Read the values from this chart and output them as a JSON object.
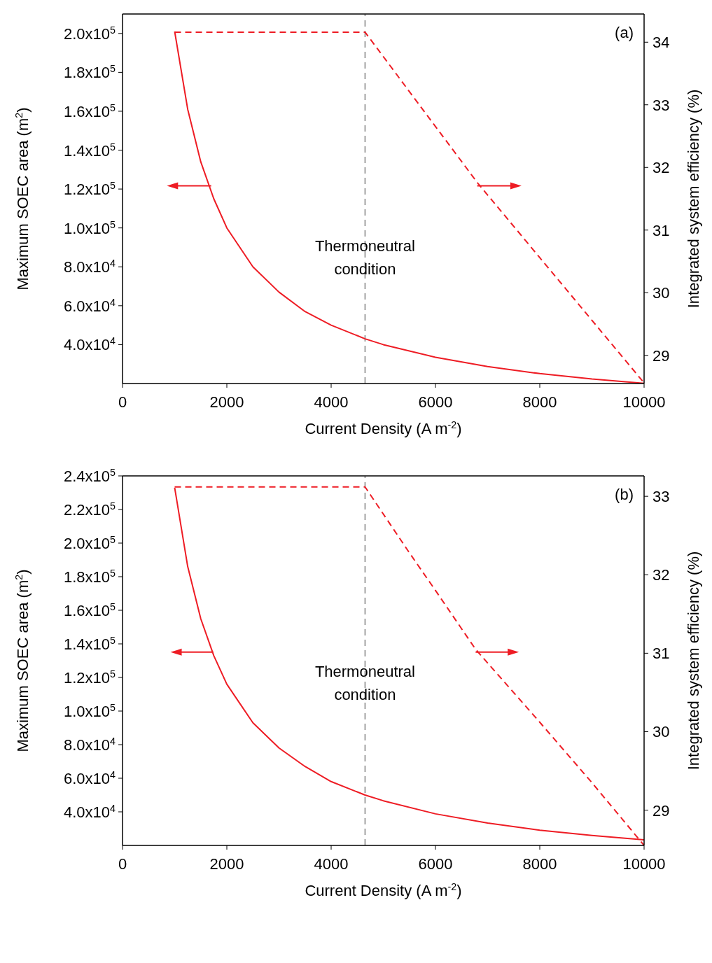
{
  "chart_data": [
    {
      "type": "line",
      "annotations": [
        "(a)",
        {
          "text": "Thermoneutral condition",
          "x": 4650,
          "y": 85000
        }
      ],
      "xlabel": "Current Density (A m$^{-2}$)",
      "ylabel": "Maximum SOEC area (m$^{2}$)",
      "y2label": "Integrated system efficiency (%)",
      "xlim": [
        0,
        10000
      ],
      "xticks": [
        0,
        2000,
        4000,
        6000,
        8000,
        10000
      ],
      "ylim": [
        20000,
        210000
      ],
      "yticks": [
        {
          "value": 40000,
          "label": "4.0x10$^{4}$"
        },
        {
          "value": 60000,
          "label": "6.0x10$^{4}$"
        },
        {
          "value": 80000,
          "label": "8.0x10$^{4}$"
        },
        {
          "value": 100000,
          "label": "1.0x10$^{5}$"
        },
        {
          "value": 120000,
          "label": "1.2x10$^{5}$"
        },
        {
          "value": 140000,
          "label": "1.4x10$^{5}$"
        },
        {
          "value": 160000,
          "label": "1.6x10$^{5}$"
        },
        {
          "value": 180000,
          "label": "1.8x10$^{5}$"
        },
        {
          "value": 200000,
          "label": "2.0x10$^{5}$"
        }
      ],
      "y2lim": [
        28.55,
        34.45
      ],
      "y2ticks": [
        29,
        30,
        31,
        32,
        33,
        34
      ],
      "ref_lines": [
        {
          "axis": "x",
          "value": 4650,
          "color": "#808080",
          "line_style": "dashed"
        }
      ],
      "series": [
        {
          "color": "#ee1c24",
          "x": [
            1000,
            1250,
            1500,
            1750,
            2000,
            2500,
            3000,
            3500,
            4000,
            4650,
            5000,
            6000,
            7000,
            8000,
            9000,
            10000
          ],
          "values": [
            201000,
            161000,
            134000,
            115000,
            100000,
            80000,
            67000,
            57000,
            50000,
            43000,
            40000,
            33500,
            28700,
            25100,
            22300,
            20100
          ]
        },
        {
          "color": "#ee1c24",
          "axis": "y2",
          "line_style": "dashed",
          "x": [
            1000,
            4650,
            6810,
            8000,
            10000
          ],
          "values": [
            34.16,
            34.16,
            31.75,
            30.56,
            28.56
          ]
        }
      ]
    },
    {
      "type": "line",
      "annotations": [
        "(b)",
        {
          "text": "Thermoneutral condition",
          "x": 4650,
          "y": 117000
        }
      ],
      "xlabel": "Current Density (A m$^{-2}$)",
      "ylabel": "Maximum SOEC area (m$^{2}$)",
      "y2label": "Integrated system efficiency (%)",
      "xlim": [
        0,
        10000
      ],
      "xticks": [
        0,
        2000,
        4000,
        6000,
        8000,
        10000
      ],
      "ylim": [
        20000,
        240000
      ],
      "yticks": [
        {
          "value": 40000,
          "label": "4.0x10$^{4}$"
        },
        {
          "value": 60000,
          "label": "6.0x10$^{4}$"
        },
        {
          "value": 80000,
          "label": "8.0x10$^{4}$"
        },
        {
          "value": 100000,
          "label": "1.0x10$^{5}$"
        },
        {
          "value": 120000,
          "label": "1.2x10$^{5}$"
        },
        {
          "value": 140000,
          "label": "1.4x10$^{5}$"
        },
        {
          "value": 160000,
          "label": "1.6x10$^{5}$"
        },
        {
          "value": 180000,
          "label": "1.8x10$^{5}$"
        },
        {
          "value": 200000,
          "label": "2.0x10$^{5}$"
        },
        {
          "value": 220000,
          "label": "2.2x10$^{5}$"
        },
        {
          "value": 240000,
          "label": "2.4x10$^{5}$"
        }
      ],
      "y2lim": [
        28.55,
        33.26
      ],
      "y2ticks": [
        29,
        30,
        31,
        32,
        33
      ],
      "ref_lines": [
        {
          "axis": "x",
          "value": 4650,
          "color": "#808080",
          "line_style": "dashed"
        }
      ],
      "series": [
        {
          "color": "#ee1c24",
          "x": [
            1000,
            1250,
            1500,
            1750,
            2000,
            2500,
            3000,
            3500,
            4000,
            4650,
            5000,
            6000,
            7000,
            8000,
            9000,
            10000
          ],
          "values": [
            233000,
            186000,
            155000,
            133000,
            116000,
            93000,
            78000,
            67000,
            58000,
            50000,
            46600,
            38800,
            33300,
            29100,
            25900,
            23300
          ]
        },
        {
          "color": "#ee1c24",
          "axis": "y2",
          "line_style": "dashed",
          "x": [
            1000,
            4650,
            5500,
            6000,
            6770,
            8000,
            9000,
            10000
          ],
          "values": [
            33.12,
            33.12,
            32.28,
            31.8,
            31.05,
            30.12,
            29.35,
            28.55
          ]
        }
      ]
    }
  ]
}
